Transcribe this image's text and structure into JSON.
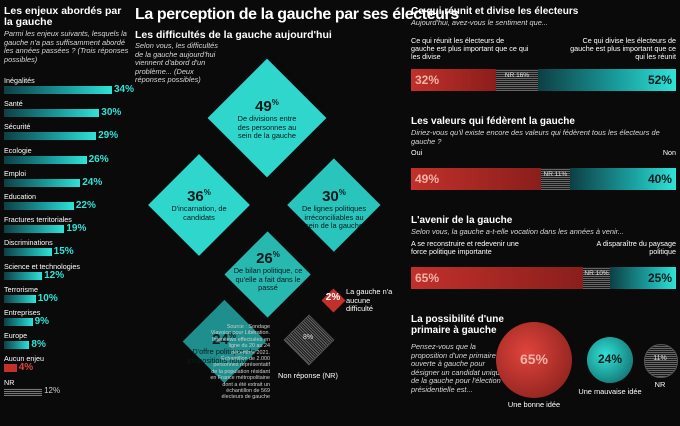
{
  "main_title": "La perception de la gauche par ses électeurs",
  "left": {
    "title": "Les enjeux abordés par la gauche",
    "question": "Parmi les enjeux suivants, lesquels la gauche n'a pas suffisamment abordé les années passées ? (Trois réponses possibles)"
  },
  "middle": {
    "subtitle": "Les difficultés de la gauche aujourd'hui",
    "question": "Selon vous, les difficultés de la gauche aujourd'hui viennent d'abord d'un problème... (Deux réponses possibles)",
    "source": "Source : Sondage Viavoice pour Libération. Interviews effectuées en ligne du 20 au 24 décembre 2021. Échantillon de 2.000 personnes représentatif de la population résidant en France métropolitaine dont a été extrait un échantillon de 569 électeurs de gauche"
  },
  "right": {
    "s1": {
      "title": "Ce qui réunit et divise les électeurs",
      "question": "Aujourd'hui, avez-vous le sentiment que...",
      "left_opt": "Ce qui réunit les électeurs de gauche est plus important que ce qui les divise",
      "right_opt": "Ce qui divise les électeurs de gauche est plus important que ce qui les réunit"
    },
    "s2": {
      "title": "Les valeurs qui fédèrent la gauche",
      "question": "Diriez-vous qu'il existe encore des valeurs qui fédèrent tous les électeurs de gauche ?",
      "left_opt": "Oui",
      "right_opt": "Non"
    },
    "s3": {
      "title": "L'avenir de la gauche",
      "question": "Selon vous, la gauche a-t-elle vocation dans les années à venir...",
      "left_opt": "A se reconstruire et redevenir une force politique importante",
      "right_opt": "A disparaître du paysage politique"
    },
    "s4": {
      "title": "La possibilité d'une primaire à gauche",
      "question": "Pensez-vous que la proposition d'une primaire ouverte à gauche pour désigner un candidat unique de la gauche pour l'élection présidentielle est..."
    }
  },
  "chart_data": [
    {
      "type": "bar",
      "title": "Les enjeux abordés par la gauche",
      "categories": [
        "Inégalités",
        "Santé",
        "Sécurité",
        "Ecologie",
        "Emploi",
        "Education",
        "Fractures territoriales",
        "Discriminations",
        "Science et technologies",
        "Terrorisme",
        "Entreprises",
        "Europe",
        "Aucun enjeu",
        "NR"
      ],
      "values": [
        34,
        30,
        29,
        26,
        24,
        22,
        19,
        15,
        12,
        10,
        9,
        8,
        4,
        12
      ],
      "value_labels": [
        "34%",
        "30%",
        "29%",
        "26%",
        "24%",
        "22%",
        "19%",
        "15%",
        "12%",
        "10%",
        "9%",
        "8%",
        "4%",
        "12%"
      ]
    },
    {
      "type": "other",
      "title": "Les difficultés de la gauche aujourd'hui",
      "categories": [
        "De divisions entre des personnes au sein de la gauche",
        "D'incarnation, de candidats",
        "De lignes politiques irréconciliables au sein de la gauche",
        "De bilan politique, ce qu'elle a fait dans le passé",
        "D'offre politique, de propositions nouvelles",
        "La gauche n'a aucune difficulté",
        "Non réponse (NR)"
      ],
      "values": [
        49,
        36,
        30,
        26,
        24,
        2,
        8
      ]
    },
    {
      "type": "bar",
      "title": "Ce qui réunit et divise les électeurs",
      "categories": [
        "Ce qui réunit les électeurs de gauche est plus important que ce qui les divise",
        "NR",
        "Ce qui divise les électeurs de gauche est plus important que ce qui les réunit"
      ],
      "values": [
        32,
        16,
        52
      ],
      "value_labels": [
        "32%",
        "NR 16%",
        "52%"
      ]
    },
    {
      "type": "bar",
      "title": "Les valeurs qui fédèrent la gauche",
      "categories": [
        "Oui",
        "NR",
        "Non"
      ],
      "values": [
        49,
        11,
        40
      ],
      "value_labels": [
        "49%",
        "NR 11%",
        "40%"
      ]
    },
    {
      "type": "bar",
      "title": "L'avenir de la gauche",
      "categories": [
        "A se reconstruire et redevenir une force politique importante",
        "NR",
        "A disparaître du paysage politique"
      ],
      "values": [
        65,
        10,
        25
      ],
      "value_labels": [
        "65%",
        "NR 10%",
        "25%"
      ]
    },
    {
      "type": "other",
      "title": "La possibilité d'une primaire à gauche",
      "categories": [
        "Une bonne idée",
        "Une mauvaise idée",
        "NR"
      ],
      "values": [
        65,
        24,
        11
      ],
      "value_labels": [
        "65%",
        "24%",
        "11%"
      ]
    }
  ],
  "colors": {
    "teal": "#2fe3d8",
    "red": "#c2302b",
    "bg": "#0a0a0a"
  }
}
